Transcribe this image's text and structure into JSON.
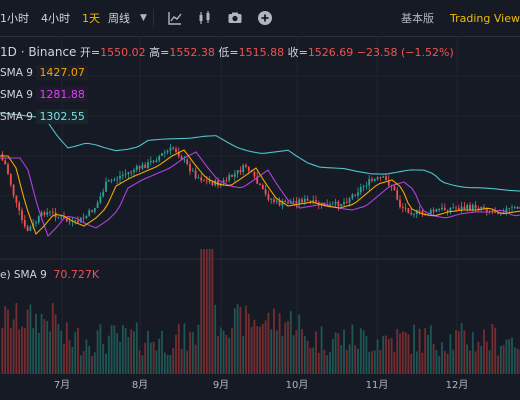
{
  "toolbar": {
    "timeframes": [
      "1小时",
      "4小时",
      "1天"
    ],
    "active_index": 2,
    "week_dropdown": "周线",
    "basic_label": "基本版",
    "tradingview_label": "Trading View"
  },
  "legend": {
    "symbol": "1D · Binance",
    "open_label": "开=",
    "open": "1550.02",
    "high_label": "高=",
    "high": "1552.38",
    "low_label": "低=",
    "low": "1515.88",
    "close_label": "收=",
    "close": "1526.69",
    "change": "−23.58 (−1.52%)",
    "ma_lines": [
      {
        "label": "SMA 9",
        "value": "1427.07",
        "color": "#f7a600",
        "bg": "#1d1e26"
      },
      {
        "label": "SMA 9",
        "value": "1281.88",
        "color": "#e040fb",
        "bg": "#1f1a2c"
      },
      {
        "label": "SMA 9",
        "value": "1302.55",
        "color": "#80deea",
        "bg": "#16262b"
      }
    ],
    "volume_label": "e) SMA 9",
    "volume_value": "70.727K",
    "volume_color": "#ef5350"
  },
  "axis": {
    "months": [
      "7月",
      "8月",
      "9月",
      "10月",
      "11月",
      "12月"
    ]
  },
  "colors": {
    "up": "#26a69a",
    "down": "#ef5350",
    "ma_fast": "#f7a600",
    "ma_mid": "#b040e0",
    "ma_slow": "#4fc3c8"
  }
}
